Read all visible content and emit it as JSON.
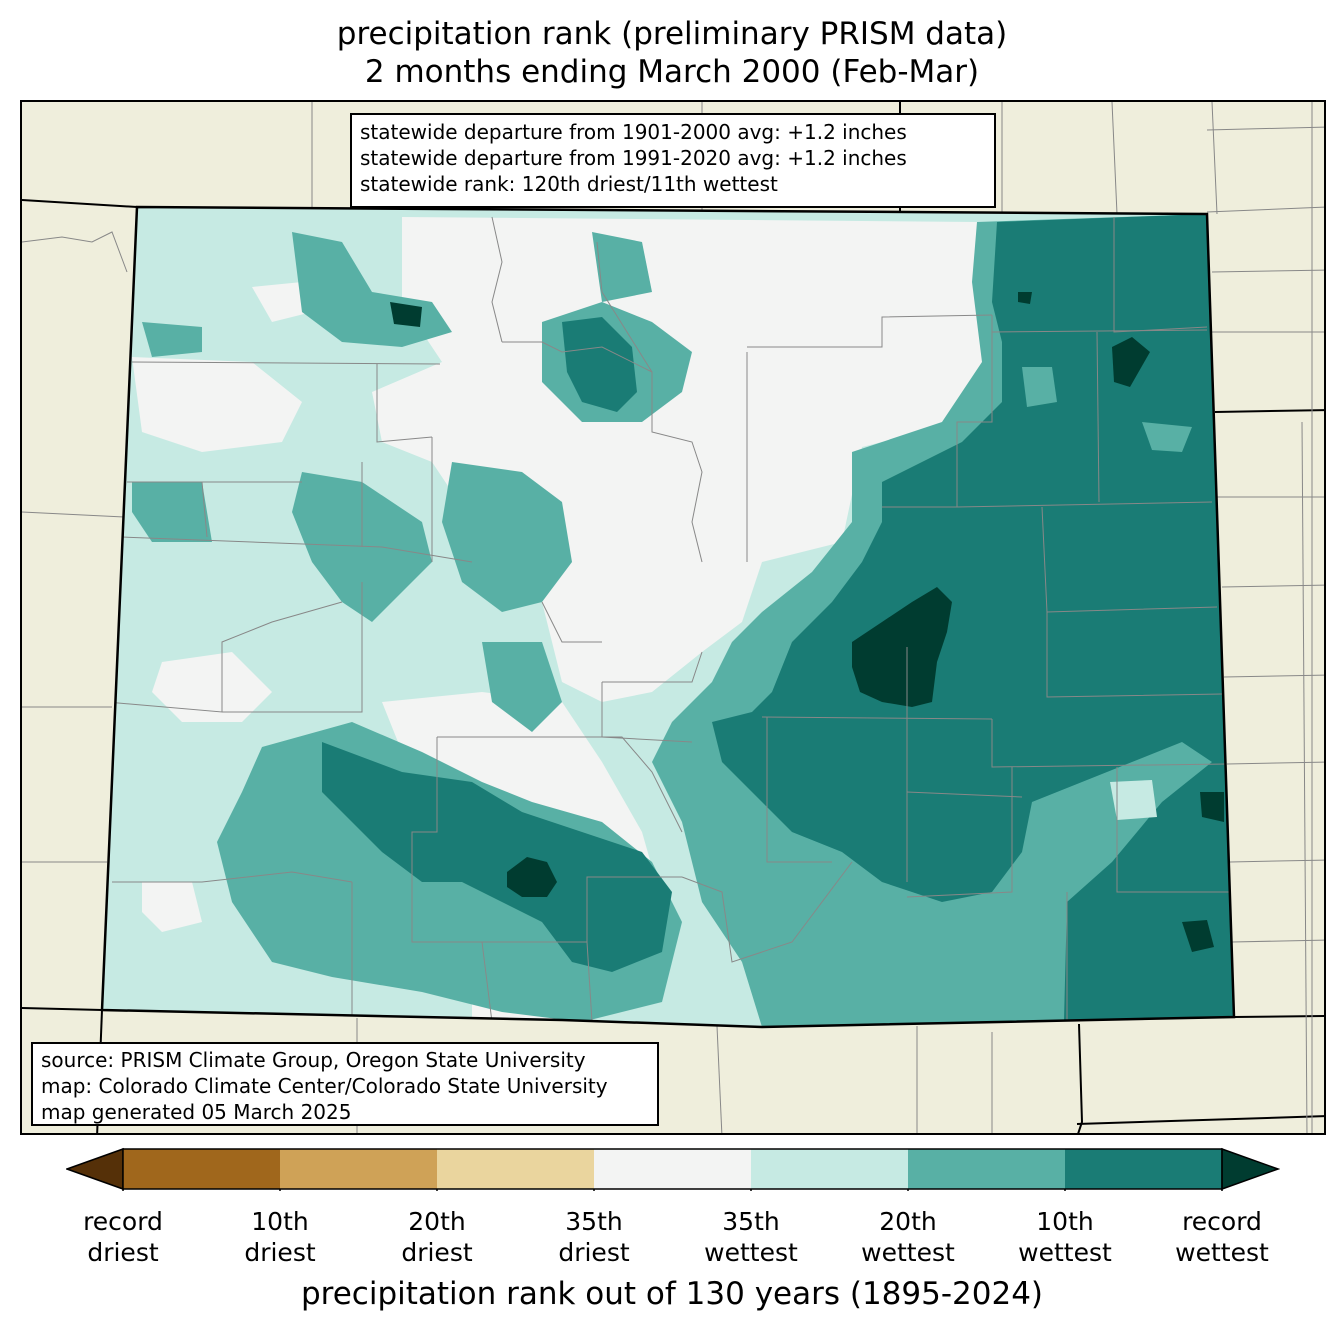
{
  "title": {
    "line1": "precipitation rank (preliminary PRISM data)",
    "line2": "2 months ending March 2000 (Feb-Mar)"
  },
  "stats_box": {
    "line1": "statewide departure from 1901-2000 avg: +1.2 inches",
    "line2": "statewide departure from 1991-2020 avg: +1.2 inches",
    "line3": "statewide rank: 120th driest/11th wettest"
  },
  "source_box": {
    "line1": "source: PRISM Climate Group, Oregon State University",
    "line2": "map: Colorado Climate Center/Colorado State University",
    "line3": "map generated 05 March 2025"
  },
  "colorbar": {
    "label": "precipitation rank out of 130 years (1895-2024)",
    "under_color": "#553008",
    "over_color": "#003c30",
    "bins": [
      {
        "color": "#a0671c"
      },
      {
        "color": "#cfa257"
      },
      {
        "color": "#ead59e"
      },
      {
        "color": "#f3f4f3"
      },
      {
        "color": "#c6eae3"
      },
      {
        "color": "#58b0a5"
      },
      {
        "color": "#1a7c75"
      }
    ],
    "ticks": [
      {
        "top": "record",
        "bottom": "driest"
      },
      {
        "top": "10th",
        "bottom": "driest"
      },
      {
        "top": "20th",
        "bottom": "driest"
      },
      {
        "top": "35th",
        "bottom": "driest"
      },
      {
        "top": "35th",
        "bottom": "wettest"
      },
      {
        "top": "20th",
        "bottom": "wettest"
      },
      {
        "top": "10th",
        "bottom": "wettest"
      },
      {
        "top": "record",
        "bottom": "wettest"
      }
    ]
  },
  "map": {
    "background_color": "#efeedc",
    "boundary_color": "#000000",
    "county_line_color": "#888888"
  }
}
